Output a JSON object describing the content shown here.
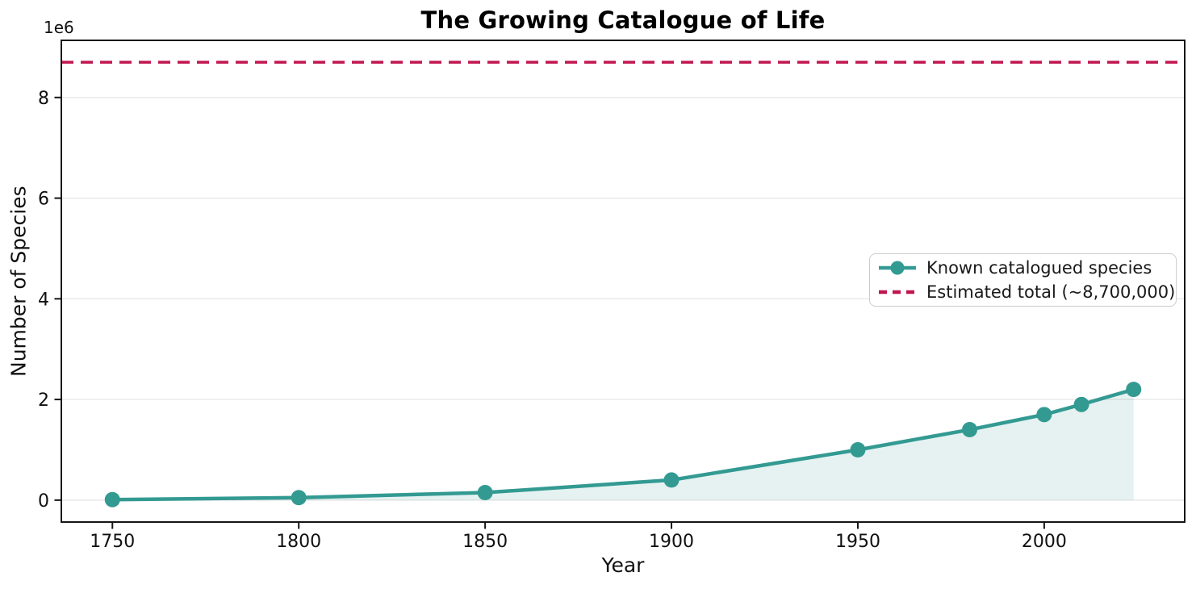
{
  "figure": {
    "title": "The Growing Catalogue of Life",
    "offset_label": "1e6",
    "xlabel": "Year",
    "ylabel": "Number of Species"
  },
  "legend": {
    "position": "center-right",
    "items": [
      {
        "label": "Known catalogued species",
        "sample": "line-with-circle-marker",
        "color": "#339a92"
      },
      {
        "label": "Estimated total (~8,700,000)",
        "sample": "dashed-line",
        "color": "#c0164f"
      }
    ]
  },
  "chart_data": {
    "type": "line",
    "title": "The Growing Catalogue of Life",
    "xlabel": "Year",
    "ylabel": "Number of Species",
    "x": [
      1750,
      1800,
      1850,
      1900,
      1950,
      1980,
      2000,
      2010,
      2024
    ],
    "series": [
      {
        "name": "Known catalogued species",
        "values": [
          10000,
          50000,
          150000,
          400000,
          1000000,
          1400000,
          1700000,
          1900000,
          2200000
        ],
        "color": "#339a92",
        "marker": "o",
        "fill_under": true,
        "fill_color_rgba": "rgba(51,154,146,0.13)"
      }
    ],
    "reference_line": {
      "label": "Estimated total (~8,700,000)",
      "value": 8700000,
      "style": "dashed",
      "color": "#c0164f"
    },
    "xticks": [
      1750,
      1800,
      1850,
      1900,
      1950,
      2000
    ],
    "yticks": [
      0,
      2000000,
      4000000,
      6000000,
      8000000
    ],
    "ytick_labels": [
      "0",
      "2",
      "4",
      "6",
      "8"
    ],
    "y_offset_factor": "1e6",
    "xlim": [
      1736.3,
      2037.7
    ],
    "ylim": [
      -435000,
      9135000
    ],
    "grid": true,
    "grid_color": "#e8e8e8",
    "spine_color": "#151515",
    "legend_position": "center-right"
  }
}
